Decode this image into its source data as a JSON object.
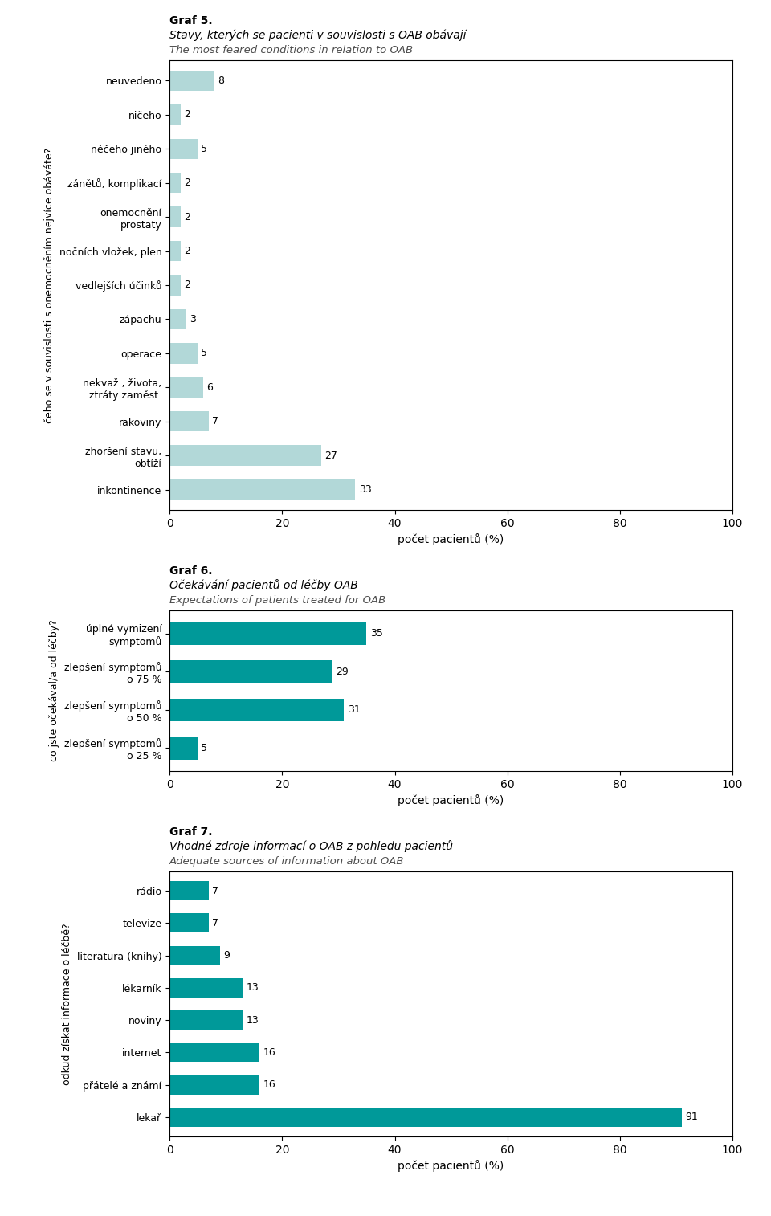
{
  "chart_data": [
    {
      "type": "bar",
      "orientation": "horizontal",
      "title": "Graf 5.",
      "subtitle": "Stavy, kterých se pacienti v souvislosti s OAB obávají",
      "annotations": [
        "The most feared conditions in relation to OAB"
      ],
      "categories": [
        "inkontinence",
        "zhoršení stavu,\nobtíží",
        "rakoviny",
        "nekvaž., života,\nztráty zaměst.",
        "operace",
        "zápachu",
        "vedlejších účinků",
        "nočních vložek, plen",
        "onemocnění\nprostaty",
        "zánětů, komplikací",
        "něčeho jiného",
        "ničeho",
        "neuvedeno"
      ],
      "values": [
        33,
        27,
        7,
        6,
        5,
        3,
        2,
        2,
        2,
        2,
        5,
        2,
        8
      ],
      "color": "#b2d8d8",
      "xlabel": "počet pacientů (%)",
      "ylabel": "čeho se v souvislosti s onemocněním nejvíce obáváte?",
      "xlim": [
        0,
        100
      ],
      "xticks": [
        0,
        20,
        40,
        60,
        80,
        100
      ],
      "data_labels": true,
      "grid": false
    },
    {
      "type": "bar",
      "orientation": "horizontal",
      "title": "Graf 6.",
      "subtitle": "Očekávání pacientů od léčby OAB",
      "annotations": [
        "Expectations of patients treated for OAB"
      ],
      "categories": [
        "zlepšení symptomů\no 25 %",
        "zlepšení symptomů\no 50 %",
        "zlepšení symptomů\no 75 %",
        "úplné vymizení\nsymptomů"
      ],
      "values": [
        5,
        31,
        29,
        35
      ],
      "color": "#009999",
      "xlabel": "počet pacientů (%)",
      "ylabel": "co jste očekával/a od léčby?",
      "xlim": [
        0,
        100
      ],
      "xticks": [
        0,
        20,
        40,
        60,
        80,
        100
      ],
      "data_labels": true,
      "grid": false
    },
    {
      "type": "bar",
      "orientation": "horizontal",
      "title": "Graf 7.",
      "subtitle": "Vhodné zdroje informací o OAB z pohledu pacientů",
      "annotations": [
        "Adequate sources of information about OAB"
      ],
      "categories": [
        "lekař",
        "přátelé a známí",
        "internet",
        "noviny",
        "lékarník",
        "literatura (knihy)",
        "televize",
        "rádio"
      ],
      "values": [
        91,
        16,
        16,
        13,
        13,
        9,
        7,
        7
      ],
      "color": "#009999",
      "xlabel": "počet pacientů (%)",
      "ylabel": "odkud získat informace o léčbě?",
      "xlim": [
        0,
        100
      ],
      "xticks": [
        0,
        20,
        40,
        60,
        80,
        100
      ],
      "data_labels": true,
      "grid": false
    }
  ]
}
